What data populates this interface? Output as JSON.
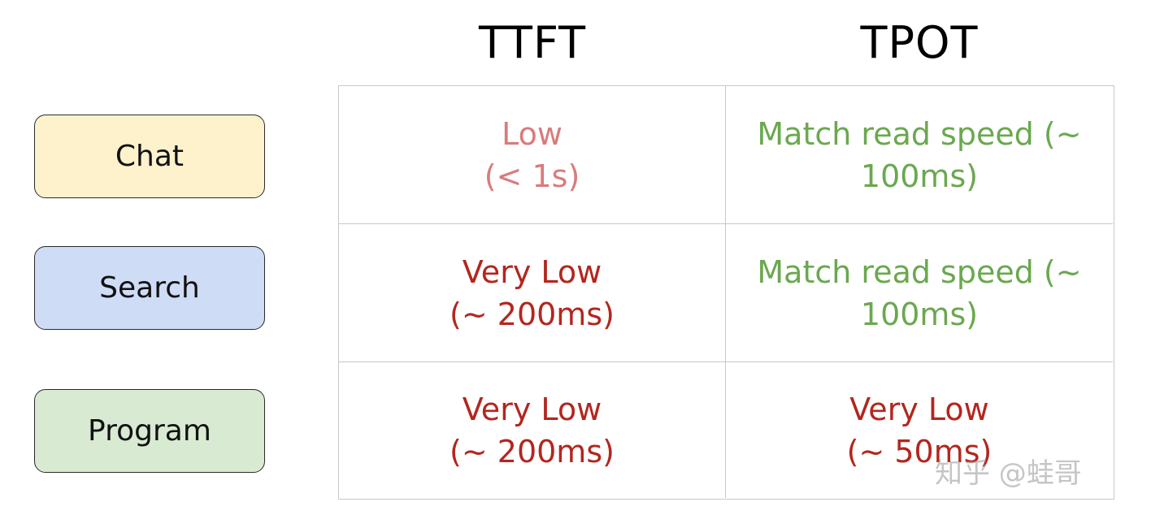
{
  "headers": {
    "ttft": "TTFT",
    "tpot": "TPOT"
  },
  "rows": [
    {
      "label": "Chat",
      "label_color": "#fdf2cc",
      "ttft": {
        "line1": "Low",
        "line2": "(< 1s)",
        "color": "#d97b7b"
      },
      "tpot": {
        "line1": "Match read speed (~",
        "line2": "100ms)",
        "color": "#6aa84f"
      }
    },
    {
      "label": "Search",
      "label_color": "#cfdcf6",
      "ttft": {
        "line1": "Very Low",
        "line2": "(~ 200ms)",
        "color": "#b3261e"
      },
      "tpot": {
        "line1": "Match read speed (~",
        "line2": "100ms)",
        "color": "#6aa84f"
      }
    },
    {
      "label": "Program",
      "label_color": "#d9ead3",
      "ttft": {
        "line1": "Very Low",
        "line2": "(~ 200ms)",
        "color": "#b3261e"
      },
      "tpot": {
        "line1": "Very Low",
        "line2": "(~ 50ms)",
        "color": "#b3261e"
      }
    }
  ],
  "watermark": "知乎 @蛙哥"
}
